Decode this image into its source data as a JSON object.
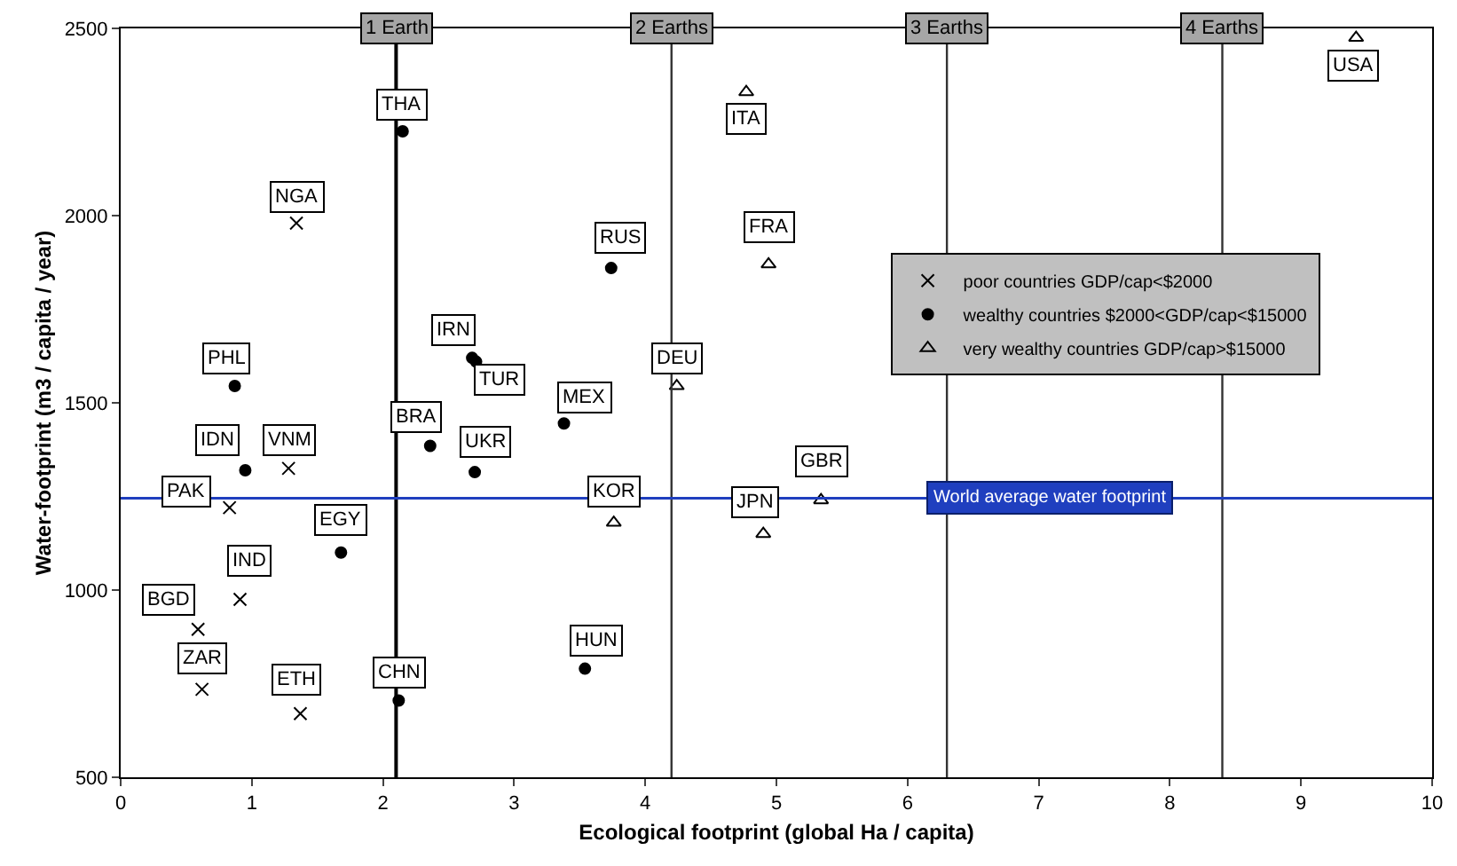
{
  "chart_data": {
    "type": "scatter",
    "xlabel": "Ecological footprint (global Ha / capita)",
    "ylabel": "Water-footprint (m3 / capita / year)",
    "xlim": [
      0,
      10
    ],
    "xticks": [
      0,
      1,
      2,
      3,
      4,
      5,
      6,
      7,
      8,
      9,
      10
    ],
    "ylim": [
      500,
      2500
    ],
    "yticks": [
      500,
      1000,
      1500,
      2000,
      2500
    ],
    "legend": "right",
    "series": [
      {
        "name": "poor countries GDP/cap<$2000",
        "color": "#000000",
        "marker": "cross",
        "x": [
          1.34,
          1.28,
          0.83,
          0.91,
          0.59,
          0.62,
          1.37
        ],
        "values": [
          1980,
          1325,
          1220,
          975,
          895,
          735,
          670
        ]
      },
      {
        "name": "wealthy countries $2000<GDP/cap<$15000",
        "color": "#000000",
        "marker": "circle",
        "x": [
          2.15,
          3.74,
          0.87,
          2.68,
          2.71,
          3.38,
          2.36,
          2.7,
          0.95,
          1.68,
          2.12,
          3.54
        ],
        "values": [
          2225,
          1860,
          1545,
          1620,
          1610,
          1445,
          1385,
          1315,
          1320,
          1100,
          705,
          790
        ]
      },
      {
        "name": "very wealthy countries GDP/cap>$15000",
        "color": "#000000",
        "marker": "triangle",
        "x": [
          9.42,
          4.77,
          4.94,
          4.24,
          3.76,
          4.9,
          5.34
        ],
        "values": [
          2475,
          2330,
          1870,
          1545,
          1180,
          1150,
          1240
        ]
      }
    ],
    "ref_lines": [
      {
        "axis": "x",
        "value": 2.1,
        "label": "1 Earth",
        "color": "#000000"
      },
      {
        "axis": "x",
        "value": 4.2,
        "label": "2 Earths",
        "color": "#333333"
      },
      {
        "axis": "x",
        "value": 6.3,
        "label": "3 Earths",
        "color": "#333333"
      },
      {
        "axis": "x",
        "value": 8.4,
        "label": "4 Earths",
        "color": "#333333"
      },
      {
        "axis": "y",
        "value": 1245,
        "label": "World average water footprint",
        "color": "#1f3fbf"
      }
    ],
    "annotations": [
      {
        "text": "NGA",
        "x": 1.34,
        "y": 1980
      },
      {
        "text": "VNM",
        "x": 1.28,
        "y": 1325
      },
      {
        "text": "PAK",
        "x": 0.83,
        "y": 1220
      },
      {
        "text": "IND",
        "x": 0.91,
        "y": 975
      },
      {
        "text": "BGD",
        "x": 0.59,
        "y": 895
      },
      {
        "text": "ZAR",
        "x": 0.62,
        "y": 735
      },
      {
        "text": "ETH",
        "x": 1.37,
        "y": 670
      },
      {
        "text": "THA",
        "x": 2.15,
        "y": 2225
      },
      {
        "text": "RUS",
        "x": 3.74,
        "y": 1860
      },
      {
        "text": "PHL",
        "x": 0.87,
        "y": 1545
      },
      {
        "text": "IRN",
        "x": 2.68,
        "y": 1620
      },
      {
        "text": "TUR",
        "x": 2.71,
        "y": 1610
      },
      {
        "text": "MEX",
        "x": 3.38,
        "y": 1445
      },
      {
        "text": "BRA",
        "x": 2.36,
        "y": 1385
      },
      {
        "text": "UKR",
        "x": 2.7,
        "y": 1315
      },
      {
        "text": "IDN",
        "x": 0.95,
        "y": 1320
      },
      {
        "text": "EGY",
        "x": 1.68,
        "y": 1100
      },
      {
        "text": "CHN",
        "x": 2.12,
        "y": 705
      },
      {
        "text": "HUN",
        "x": 3.54,
        "y": 790
      },
      {
        "text": "USA",
        "x": 9.42,
        "y": 2475
      },
      {
        "text": "ITA",
        "x": 4.77,
        "y": 2330
      },
      {
        "text": "FRA",
        "x": 4.94,
        "y": 1870
      },
      {
        "text": "DEU",
        "x": 4.24,
        "y": 1545
      },
      {
        "text": "KOR",
        "x": 3.76,
        "y": 1180
      },
      {
        "text": "JPN",
        "x": 4.9,
        "y": 1150
      },
      {
        "text": "GBR",
        "x": 5.34,
        "y": 1240
      }
    ]
  }
}
